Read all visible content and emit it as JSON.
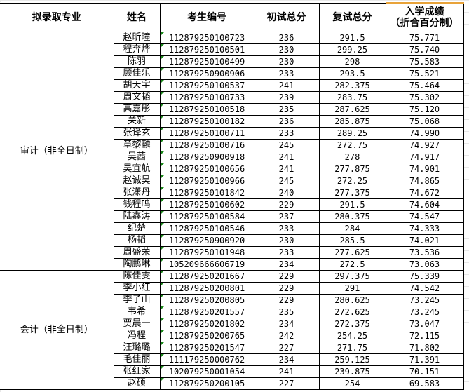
{
  "headers": [
    "拟录取专业",
    "姓名",
    "考生编号",
    "初试总分",
    "复试总分",
    "入学成绩",
    "（折合百分制）"
  ],
  "groups": [
    {
      "major": "审计（非全日制）",
      "rows": [
        [
          "赵昕曈",
          "112879250100723",
          "236",
          "291.5",
          "75.771"
        ],
        [
          "程奔烨",
          "112879250100501",
          "230",
          "299.25",
          "75.740"
        ],
        [
          "陈羽",
          "112879250100499",
          "230",
          "298",
          "75.583"
        ],
        [
          "顾佳乐",
          "112879250900906",
          "233",
          "293.5",
          "75.521"
        ],
        [
          "胡天宇",
          "112879250100537",
          "241",
          "282.375",
          "75.464"
        ],
        [
          "周文韬",
          "112879250100733",
          "239",
          "283.75",
          "75.302"
        ],
        [
          "高嘉彤",
          "112879250100518",
          "235",
          "287.625",
          "75.120"
        ],
        [
          "关新",
          "112879250100182",
          "236",
          "285.875",
          "75.068"
        ],
        [
          "张译玄",
          "112879250100711",
          "233",
          "289.25",
          "74.990"
        ],
        [
          "章黎麟",
          "112879250100716",
          "245",
          "272.75",
          "74.927"
        ],
        [
          "吴茜",
          "112879250900918",
          "241",
          "278",
          "74.917"
        ],
        [
          "吴宜航",
          "112879250100656",
          "241",
          "277.875",
          "74.901"
        ],
        [
          "赵诚昊",
          "112879250100966",
          "245",
          "272.25",
          "74.865"
        ],
        [
          "张潇丹",
          "112879250101842",
          "240",
          "277.375",
          "74.672"
        ],
        [
          "钱程鸣",
          "112879250100602",
          "229",
          "291.5",
          "74.604"
        ],
        [
          "陆鑫涛",
          "112879250100584",
          "237",
          "280.375",
          "74.547"
        ],
        [
          "纪楚",
          "112879250100546",
          "233",
          "284",
          "74.333"
        ],
        [
          "杨韬",
          "112879250900920",
          "230",
          "285.5",
          "74.021"
        ],
        [
          "周盛荣",
          "112879250101948",
          "233",
          "277.625",
          "73.536"
        ],
        [
          "陶鹏琳",
          "105209666606719",
          "234",
          "272.5",
          "73.063"
        ]
      ]
    },
    {
      "major": "会计（非全日制）",
      "rows": [
        [
          "陈佳雯",
          "112879250201667",
          "229",
          "297.375",
          "75.339"
        ],
        [
          "李小红",
          "112879250200801",
          "229",
          "291",
          "74.542"
        ],
        [
          "李子山",
          "112879250200805",
          "229",
          "280.625",
          "73.245"
        ],
        [
          "韦希",
          "112879250201557",
          "235",
          "272.625",
          "73.245"
        ],
        [
          "贾晨一",
          "112879250201802",
          "234",
          "272.375",
          "73.047"
        ],
        [
          "冯程",
          "112879250200765",
          "242",
          "254.25",
          "72.115"
        ],
        [
          "汪璐璐",
          "112879250201547",
          "227",
          "271.75",
          "71.802"
        ],
        [
          "毛佳丽",
          "111179250000762",
          "234",
          "259.125",
          "71.391"
        ],
        [
          "张红家",
          "102079250001054",
          "241",
          "239.875",
          "70.151"
        ],
        [
          "赵硕",
          "112879250200105",
          "227",
          "254",
          "69.583"
        ]
      ]
    }
  ]
}
